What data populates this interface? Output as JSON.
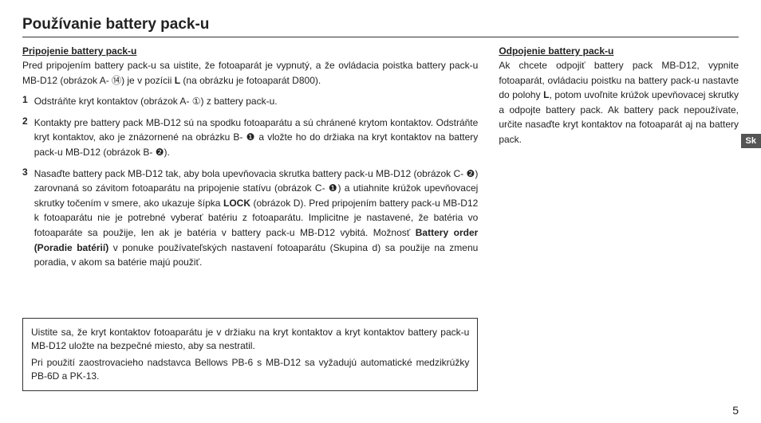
{
  "page": {
    "title": "Používanie battery pack-u",
    "side_tab": "Sk",
    "page_number": "5"
  },
  "left": {
    "subhead": "Pripojenie battery pack-u",
    "intro_pre": "Pred pripojením battery pack-u sa uistite, že fotoaparát je vypnutý, a že ovládacia poistka battery pack-u MB-D12 (obrázok A- ",
    "intro_circ14": "⑭",
    "intro_mid": ") je v pozícii ",
    "intro_L": "L",
    "intro_post": " (na obrázku je fotoaparát D800).",
    "step1_num": "1",
    "step1_pre": "Odstráňte kryt kontaktov (obrázok A- ",
    "step1_circ": "①",
    "step1_post": ") z battery pack-u.",
    "step2_num": "2",
    "step2_pre": "Kontakty pre battery pack MB-D12 sú na spodku fotoaparátu a sú chránené krytom kontaktov. Odstráňte kryt kontaktov, ako je znázornené na obrázku B- ",
    "step2_c1": "❶",
    "step2_mid": " a vložte ho do držiaka na kryt kontaktov na battery pack-u MB-D12 (obrázok B- ",
    "step2_c2": "❷",
    "step2_post": ").",
    "step3_num": "3",
    "step3_pre": "Nasaďte battery pack MB-D12 tak, aby bola upevňovacia skrutka battery pack-u MB-D12 (obrázok C- ",
    "step3_c2": "❷",
    "step3_mid1": ") zarovnaná so závitom fotoaparátu na pripojenie statívu (obrázok C- ",
    "step3_c1": "❶",
    "step3_mid2": ") a utiahnite krúžok upevňovacej skrutky točením v smere, ako ukazuje šípka ",
    "step3_lock": "LOCK",
    "step3_mid3": " (obrázok D). Pred pripojením battery pack-u MB-D12 k fotoaparátu nie je potrebné vyberať batériu z fotoaparátu. Implicitne je nastavené, že batéria vo fotoaparáte sa použije, len ak je batéria v battery pack-u MB-D12 vybitá. Možnosť ",
    "step3_bo": "Battery order (Poradie batérií)",
    "step3_post": " v ponuke používateľských nastavení fotoaparátu (Skupina d) sa použije na zmenu poradia, v akom sa batérie majú použiť.",
    "note1": "Uistite sa, že kryt kontaktov fotoaparátu je v držiaku na kryt kontaktov a kryt kontaktov battery pack-u MB-D12 uložte na bezpečné miesto, aby sa nestratil.",
    "note2": "Pri použití zaostrovacieho nadstavca Bellows PB-6 s MB-D12 sa vyžadujú automatické medzikrúžky PB-6D a PK-13."
  },
  "right": {
    "subhead": "Odpojenie battery pack-u",
    "body_pre": "Ak chcete odpojiť battery pack MB-D12, vypnite fotoaparát, ovládaciu poistku na battery pack-u nastavte do polohy ",
    "body_L": "L",
    "body_post": ", potom uvoľnite krúžok upevňovacej skrutky a odpojte battery pack. Ak battery pack nepoužívate, určite nasaďte kryt kontaktov na fotoaparát aj na battery pack."
  }
}
